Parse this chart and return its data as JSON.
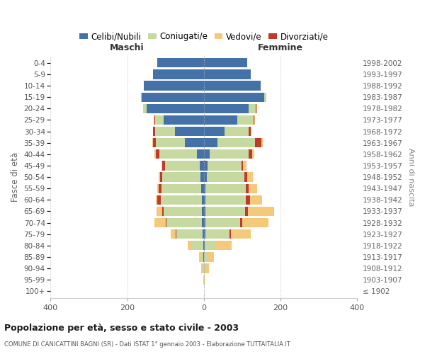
{
  "age_groups": [
    "100+",
    "95-99",
    "90-94",
    "85-89",
    "80-84",
    "75-79",
    "70-74",
    "65-69",
    "60-64",
    "55-59",
    "50-54",
    "45-49",
    "40-44",
    "35-39",
    "30-34",
    "25-29",
    "20-24",
    "15-19",
    "10-14",
    "5-9",
    "0-4"
  ],
  "birth_years": [
    "≤ 1902",
    "1903-1907",
    "1908-1912",
    "1913-1917",
    "1918-1922",
    "1923-1927",
    "1928-1932",
    "1933-1937",
    "1938-1942",
    "1943-1947",
    "1948-1952",
    "1953-1957",
    "1958-1962",
    "1963-1967",
    "1968-1972",
    "1973-1977",
    "1978-1982",
    "1983-1987",
    "1988-1992",
    "1993-1997",
    "1998-2002"
  ],
  "maschi_celibi": [
    0,
    0,
    0,
    1,
    2,
    3,
    5,
    5,
    5,
    6,
    8,
    10,
    18,
    50,
    75,
    105,
    150,
    162,
    157,
    132,
    122
  ],
  "maschi_coniugati": [
    0,
    1,
    3,
    6,
    28,
    68,
    92,
    100,
    108,
    105,
    100,
    92,
    98,
    75,
    52,
    22,
    8,
    2,
    0,
    0,
    0
  ],
  "maschi_vedovi": [
    0,
    0,
    4,
    6,
    12,
    12,
    28,
    14,
    4,
    3,
    3,
    3,
    2,
    2,
    1,
    1,
    0,
    0,
    0,
    0,
    0
  ],
  "maschi_divorziati": [
    0,
    0,
    0,
    0,
    0,
    3,
    3,
    4,
    8,
    7,
    6,
    6,
    10,
    8,
    5,
    2,
    1,
    0,
    0,
    0,
    0
  ],
  "femmine_nubili": [
    0,
    0,
    0,
    1,
    2,
    5,
    5,
    5,
    5,
    5,
    8,
    10,
    15,
    35,
    55,
    88,
    118,
    158,
    148,
    123,
    113
  ],
  "femmine_coniugate": [
    0,
    0,
    5,
    10,
    28,
    62,
    90,
    102,
    105,
    105,
    98,
    88,
    102,
    98,
    62,
    42,
    18,
    5,
    0,
    0,
    0
  ],
  "femmine_vedove": [
    0,
    2,
    9,
    16,
    42,
    52,
    68,
    68,
    32,
    22,
    15,
    8,
    5,
    3,
    2,
    1,
    1,
    0,
    0,
    0,
    0
  ],
  "femmine_divorziate": [
    0,
    0,
    0,
    0,
    0,
    3,
    5,
    8,
    10,
    8,
    8,
    5,
    10,
    18,
    5,
    2,
    2,
    0,
    0,
    0,
    0
  ],
  "color_celibi": "#4472a8",
  "color_coniugati": "#c5d9a0",
  "color_vedovi": "#f5c97a",
  "color_divorziati": "#c0392b",
  "xlim": 400,
  "title": "Popolazione per età, sesso e stato civile - 2003",
  "subtitle": "COMUNE DI CANICATTINI BAGNI (SR) - Dati ISTAT 1° gennaio 2003 - Elaborazione TUTTAITALIA.IT",
  "ylabel_left": "Fasce di età",
  "ylabel_right": "Anni di nascita",
  "label_maschi": "Maschi",
  "label_femmine": "Femmine",
  "legend": [
    "Celibi/Nubili",
    "Coniugati/e",
    "Vedovi/e",
    "Divorziati/e"
  ]
}
